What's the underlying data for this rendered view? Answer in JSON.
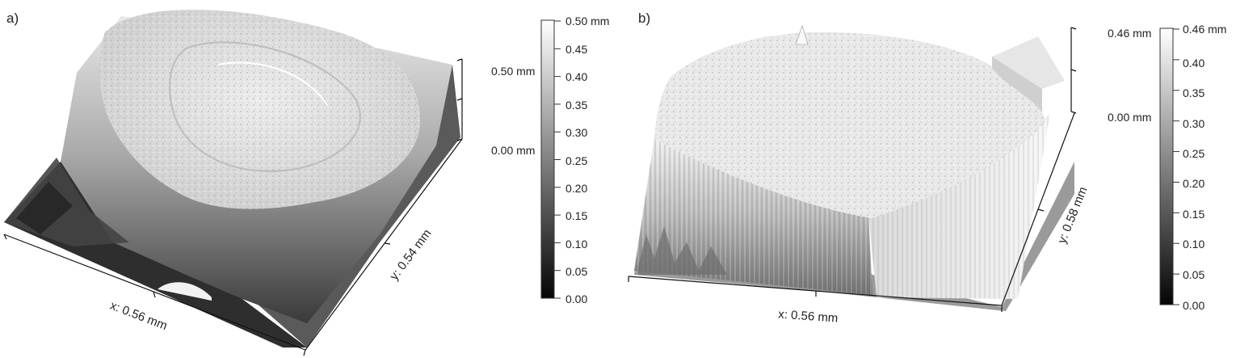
{
  "panel_a": {
    "label": "a)",
    "x_axis": "x: 0.56 mm",
    "y_axis": "y: 0.54 mm",
    "z_ticks": [
      "0.50 mm",
      "0.00 mm"
    ],
    "colorbar": {
      "max_label": "0.50 mm",
      "ticks": [
        "0.45",
        "0.40",
        "0.35",
        "0.30",
        "0.25",
        "0.20",
        "0.15",
        "0.10",
        "0.05",
        "0.00"
      ]
    }
  },
  "panel_b": {
    "label": "b)",
    "x_axis": "x: 0.56 mm",
    "y_axis": "y: 0.58 mm",
    "z_ticks": [
      "0.46 mm",
      "0.00 mm"
    ],
    "colorbar": {
      "max_label": "0.46 mm",
      "ticks": [
        "0.40",
        "0.35",
        "0.30",
        "0.25",
        "0.20",
        "0.15",
        "0.10",
        "0.05",
        "0.00"
      ]
    }
  }
}
